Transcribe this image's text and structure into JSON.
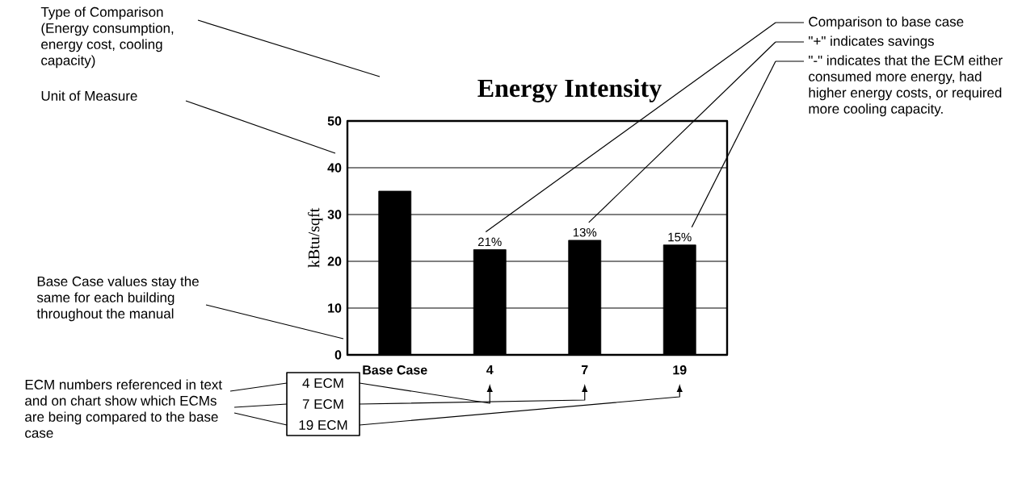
{
  "chart_data": {
    "type": "bar",
    "title": "Energy Intensity",
    "ylabel": "kBtu/sqft",
    "categories": [
      "Base Case",
      "4",
      "7",
      "19"
    ],
    "values": [
      35,
      22.5,
      24.5,
      23.5
    ],
    "color": "#000000",
    "ylim": [
      0,
      50
    ],
    "yticks": [
      0,
      10,
      20,
      30,
      40,
      50
    ],
    "grid": "y",
    "annotations": [
      "Type of Comparison (Energy consumption, energy cost, cooling capacity)",
      "Unit of Measure",
      "Base Case values stay the same for each building throughout the manual",
      "ECM numbers referenced in text and on chart show which ECMs are being compared to the base case",
      "4 ECM",
      "7 ECM",
      "19 ECM",
      "Comparison to base case",
      "\"+\" indicates savings",
      "\"-\" indicates that the ECM either consumed more energy, had higher energy costs, or required more cooling capacity.",
      {
        "text": "21%",
        "x": "4",
        "y": 22.5
      },
      {
        "text": "13%",
        "x": "7",
        "y": 24.5
      },
      {
        "text": "15%",
        "x": "19",
        "y": 23.5
      }
    ]
  }
}
